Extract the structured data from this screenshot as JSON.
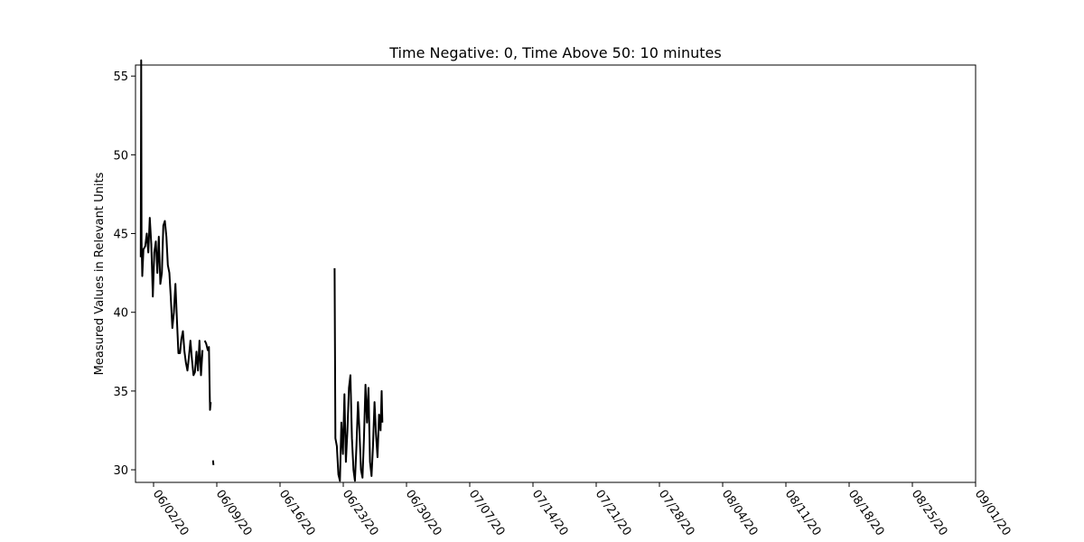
{
  "chart_data": {
    "type": "line",
    "title": "Time Negative: 0, Time Above 50: 10 minutes",
    "xlabel": "",
    "ylabel": "Measured Values in Relevant Units",
    "xlim": [
      "2020-05-31",
      "2020-09-01"
    ],
    "ylim": [
      29.2,
      55.7
    ],
    "x_ticks": [
      "06/02/20",
      "06/09/20",
      "06/16/20",
      "06/23/20",
      "06/30/20",
      "07/07/20",
      "07/14/20",
      "07/21/20",
      "07/28/20",
      "08/04/20",
      "08/11/20",
      "08/18/20",
      "08/25/20",
      "09/01/20"
    ],
    "y_ticks": [
      30,
      35,
      40,
      45,
      50,
      55
    ],
    "grid": false,
    "line_color": "#000000",
    "series": [
      {
        "segments": [
          [
            [
              "2020-05-31T14:00",
              43.5
            ],
            [
              "2020-05-31T15:00",
              56.0
            ],
            [
              "2020-05-31T16:00",
              44.5
            ],
            [
              "2020-05-31T18:00",
              42.3
            ],
            [
              "2020-05-31T21:00",
              44.0
            ],
            [
              "2020-06-01T02:00",
              44.2
            ],
            [
              "2020-06-01T06:00",
              45.0
            ],
            [
              "2020-06-01T10:00",
              43.8
            ],
            [
              "2020-06-01T14:00",
              46.0
            ],
            [
              "2020-06-01T18:00",
              44.3
            ],
            [
              "2020-06-01T22:00",
              41.0
            ],
            [
              "2020-06-02T02:00",
              43.8
            ],
            [
              "2020-06-02T06:00",
              44.5
            ],
            [
              "2020-06-02T10:00",
              42.5
            ],
            [
              "2020-06-02T14:00",
              44.8
            ],
            [
              "2020-06-02T18:00",
              41.8
            ],
            [
              "2020-06-02T22:00",
              42.5
            ],
            [
              "2020-06-03T02:00",
              45.5
            ],
            [
              "2020-06-03T06:00",
              45.8
            ],
            [
              "2020-06-03T10:00",
              44.8
            ],
            [
              "2020-06-03T14:00",
              43.0
            ],
            [
              "2020-06-03T18:00",
              42.5
            ],
            [
              "2020-06-03T22:00",
              40.8
            ],
            [
              "2020-06-04T02:00",
              39.0
            ],
            [
              "2020-06-04T06:00",
              40.0
            ],
            [
              "2020-06-04T10:00",
              41.8
            ],
            [
              "2020-06-04T14:00",
              39.6
            ],
            [
              "2020-06-04T18:00",
              37.4
            ],
            [
              "2020-06-04T22:00",
              37.4
            ],
            [
              "2020-06-05T02:00",
              38.3
            ],
            [
              "2020-06-05T06:00",
              38.8
            ],
            [
              "2020-06-05T10:00",
              37.5
            ],
            [
              "2020-06-05T14:00",
              36.8
            ],
            [
              "2020-06-05T18:00",
              36.3
            ],
            [
              "2020-06-05T22:00",
              37.2
            ],
            [
              "2020-06-06T02:00",
              38.2
            ],
            [
              "2020-06-06T06:00",
              37.0
            ],
            [
              "2020-06-06T10:00",
              36.0
            ],
            [
              "2020-06-06T14:00",
              36.2
            ],
            [
              "2020-06-06T18:00",
              37.5
            ],
            [
              "2020-06-06T22:00",
              36.3
            ],
            [
              "2020-06-07T02:00",
              38.2
            ],
            [
              "2020-06-07T06:00",
              36.0
            ],
            [
              "2020-06-07T10:00",
              37.6
            ]
          ],
          [
            [
              "2020-06-07T16:00",
              38.2
            ],
            [
              "2020-06-07T20:00",
              38.0
            ],
            [
              "2020-06-08T00:00",
              37.6
            ],
            [
              "2020-06-08T03:00",
              37.8
            ],
            [
              "2020-06-08T06:00",
              33.8
            ],
            [
              "2020-06-08T08:00",
              34.3
            ]
          ],
          [
            [
              "2020-06-08T14:00",
              30.6
            ],
            [
              "2020-06-08T15:00",
              30.3
            ]
          ],
          [
            [
              "2020-06-22T01:00",
              42.8
            ],
            [
              "2020-06-22T03:00",
              32.0
            ],
            [
              "2020-06-22T07:00",
              31.5
            ],
            [
              "2020-06-22T11:00",
              29.7
            ],
            [
              "2020-06-22T15:00",
              29.3
            ],
            [
              "2020-06-22T19:00",
              33.0
            ],
            [
              "2020-06-22T23:00",
              31.0
            ],
            [
              "2020-06-23T03:00",
              34.8
            ],
            [
              "2020-06-23T07:00",
              30.5
            ],
            [
              "2020-06-23T11:00",
              32.5
            ],
            [
              "2020-06-23T15:00",
              35.2
            ],
            [
              "2020-06-23T19:00",
              36.0
            ],
            [
              "2020-06-23T23:00",
              32.0
            ],
            [
              "2020-06-24T03:00",
              30.0
            ],
            [
              "2020-06-24T07:00",
              29.3
            ],
            [
              "2020-06-24T11:00",
              31.5
            ],
            [
              "2020-06-24T15:00",
              34.3
            ],
            [
              "2020-06-24T19:00",
              32.5
            ],
            [
              "2020-06-24T23:00",
              30.0
            ],
            [
              "2020-06-25T03:00",
              29.5
            ],
            [
              "2020-06-25T07:00",
              32.0
            ],
            [
              "2020-06-25T11:00",
              35.4
            ],
            [
              "2020-06-25T15:00",
              33.0
            ],
            [
              "2020-06-25T19:00",
              35.2
            ],
            [
              "2020-06-25T23:00",
              30.5
            ],
            [
              "2020-06-26T03:00",
              29.6
            ],
            [
              "2020-06-26T07:00",
              31.5
            ],
            [
              "2020-06-26T11:00",
              34.3
            ],
            [
              "2020-06-26T15:00",
              32.2
            ],
            [
              "2020-06-26T19:00",
              30.8
            ],
            [
              "2020-06-26T23:00",
              33.5
            ],
            [
              "2020-06-27T03:00",
              32.5
            ],
            [
              "2020-06-27T06:00",
              35.0
            ],
            [
              "2020-06-27T08:00",
              33.0
            ]
          ]
        ]
      }
    ]
  }
}
